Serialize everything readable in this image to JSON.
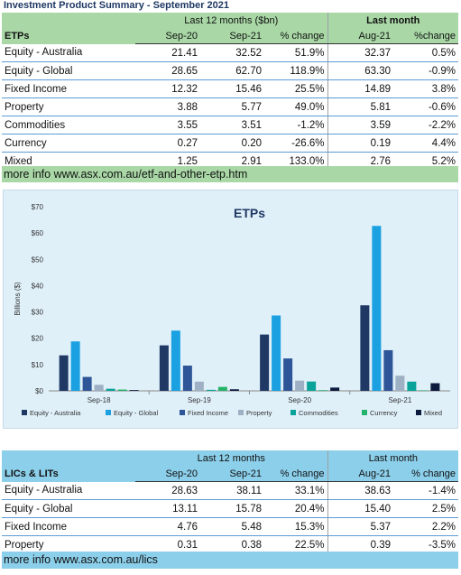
{
  "page_title": "Investment Product Summary - September 2021",
  "etp_table": {
    "section_label": "ETPs",
    "group1": "Last 12 months ($bn)",
    "group2": "Last month",
    "columns": [
      "Sep-20",
      "Sep-21",
      "% change",
      "Aug-21",
      "%change"
    ],
    "rows": [
      {
        "name": "Equity - Australia",
        "c1": "21.41",
        "c2": "32.52",
        "c3": "51.9%",
        "c4": "32.37",
        "c5": "0.5%"
      },
      {
        "name": "Equity - Global",
        "c1": "28.65",
        "c2": "62.70",
        "c3": "118.9%",
        "c4": "63.30",
        "c5": "-0.9%"
      },
      {
        "name": "Fixed Income",
        "c1": "12.32",
        "c2": "15.46",
        "c3": "25.5%",
        "c4": "14.89",
        "c5": "3.8%"
      },
      {
        "name": "Property",
        "c1": "3.88",
        "c2": "5.77",
        "c3": "49.0%",
        "c4": "5.81",
        "c5": "-0.6%"
      },
      {
        "name": "Commodities",
        "c1": "3.55",
        "c2": "3.51",
        "c3": "-1.2%",
        "c4": "3.59",
        "c5": "-2.2%"
      },
      {
        "name": "Currency",
        "c1": "0.27",
        "c2": "0.20",
        "c3": "-26.6%",
        "c4": "0.19",
        "c5": "4.4%"
      },
      {
        "name": "Mixed",
        "c1": "1.25",
        "c2": "2.91",
        "c3": "133.0%",
        "c4": "2.76",
        "c5": "5.2%"
      }
    ],
    "more_info": "more info www.asx.com.au/etf-and-other-etp.htm"
  },
  "chart_data": {
    "type": "bar",
    "title": "ETPs",
    "ylabel": "Billions ($)",
    "xlabel": "",
    "ylim": [
      0,
      70
    ],
    "yticks": [
      "$0",
      "$10",
      "$20",
      "$30",
      "$40",
      "$50",
      "$60",
      "$70"
    ],
    "categories": [
      "Sep-18",
      "Sep-19",
      "Sep-20",
      "Sep-21"
    ],
    "series": [
      {
        "name": "Equity - Australia",
        "color": "#1f3864",
        "values": [
          13.5,
          17.3,
          21.41,
          32.52
        ]
      },
      {
        "name": "Equity - Global",
        "color": "#1ba1e2",
        "values": [
          18.8,
          22.9,
          28.65,
          62.7
        ]
      },
      {
        "name": "Fixed Income",
        "color": "#2e5597",
        "values": [
          5.3,
          9.6,
          12.32,
          15.46
        ]
      },
      {
        "name": "Property",
        "color": "#9eb0c4",
        "values": [
          2.3,
          3.5,
          3.88,
          5.77
        ]
      },
      {
        "name": "Commodities",
        "color": "#0aa39a",
        "values": [
          0.8,
          0.4,
          3.55,
          3.51
        ]
      },
      {
        "name": "Currency",
        "color": "#25b36a",
        "values": [
          0.5,
          1.5,
          0.27,
          0.2
        ]
      },
      {
        "name": "Mixed",
        "color": "#0b1a3d",
        "values": [
          0.3,
          0.6,
          1.25,
          2.91
        ]
      }
    ],
    "grid": false,
    "legend_position": "bottom"
  },
  "lic_table": {
    "section_label": "LICs & LITs",
    "group1": "Last 12 months",
    "group2": "Last month",
    "columns": [
      "Sep-20",
      "Sep-21",
      "% change",
      "Aug-21",
      "% change"
    ],
    "rows": [
      {
        "name": "Equity - Australia",
        "c1": "28.63",
        "c2": "38.11",
        "c3": "33.1%",
        "c4": "38.63",
        "c5": "-1.4%"
      },
      {
        "name": "Equity - Global",
        "c1": "13.11",
        "c2": "15.78",
        "c3": "20.4%",
        "c4": "15.40",
        "c5": "2.5%"
      },
      {
        "name": "Fixed Income",
        "c1": "4.76",
        "c2": "5.48",
        "c3": "15.3%",
        "c4": "5.37",
        "c5": "2.2%"
      },
      {
        "name": "Property",
        "c1": "0.31",
        "c2": "0.38",
        "c3": "22.5%",
        "c4": "0.39",
        "c5": "-3.5%"
      }
    ],
    "more_info": "more info www.asx.com.au/lics"
  }
}
